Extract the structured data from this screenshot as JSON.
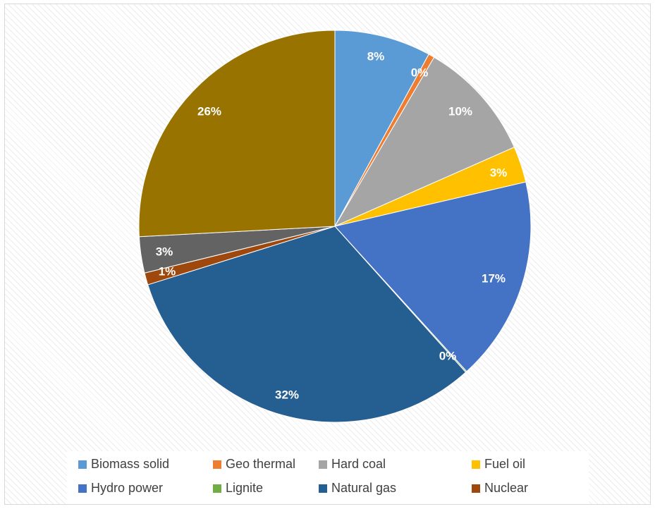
{
  "chart_data": {
    "type": "pie",
    "slices": [
      {
        "name": "Biomass solid",
        "value": 8,
        "label": "8%",
        "color": "#5B9BD5"
      },
      {
        "name": "Geo thermal",
        "value": 0.5,
        "label": "0%",
        "color": "#ED7D31"
      },
      {
        "name": "Hard coal",
        "value": 10,
        "label": "10%",
        "color": "#A5A5A5"
      },
      {
        "name": "Fuel oil",
        "value": 3,
        "label": "3%",
        "color": "#FFC000"
      },
      {
        "name": "Hydro power",
        "value": 17,
        "label": "17%",
        "color": "#4472C4"
      },
      {
        "name": "Lignite",
        "value": 0.1,
        "label": "0%",
        "color": "#70AD47"
      },
      {
        "name": "Natural gas",
        "value": 32,
        "label": "32%",
        "color": "#255E91"
      },
      {
        "name": "Nuclear",
        "value": 1,
        "label": "1%",
        "color": "#9E480E"
      },
      {
        "name": "",
        "value": 3,
        "label": "3%",
        "color": "#636363"
      },
      {
        "name": "",
        "value": 26,
        "label": "26%",
        "color": "#997300"
      }
    ],
    "legend": {
      "placement": "bottom",
      "items": [
        "Biomass solid",
        "Geo thermal",
        "Hard coal",
        "Fuel oil",
        "Hydro power",
        "Lignite",
        "Natural gas",
        "Nuclear"
      ]
    }
  }
}
